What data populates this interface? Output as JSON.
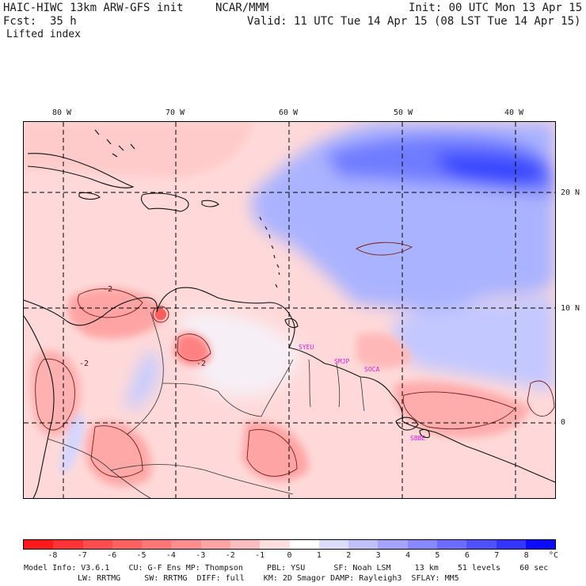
{
  "header": {
    "model_title": "HAIC-HIWC 13km ARW-GFS init",
    "institution": "NCAR/MMM",
    "init": "Init: 00 UTC Mon 13 Apr 15",
    "fcst": "Fcst:  35 h",
    "valid": "Valid: 11 UTC Tue 14 Apr 15 (08 LST Tue 14 Apr 15)",
    "field": "Lifted index"
  },
  "map": {
    "lon_labels": [
      "80 W",
      "70 W",
      "60 W",
      "50 W",
      "40 W"
    ],
    "lat_labels": [
      "20 N",
      "10 N",
      "0"
    ],
    "stations": [
      "SYEU",
      "SMJP",
      "SOCA",
      "SBBE"
    ],
    "contour_labels": [
      "-2",
      "-2",
      "-2"
    ]
  },
  "colorbar": {
    "labels": [
      "-8",
      "-7",
      "-6",
      "-5",
      "-4",
      "-3",
      "-2",
      "-1",
      "0",
      "1",
      "2",
      "3",
      "4",
      "5",
      "6",
      "7",
      "8"
    ],
    "unit": "°C",
    "colors": [
      "#ff0000",
      "#ff2020",
      "#ff4040",
      "#ff5a5a",
      "#ff7070",
      "#ff8888",
      "#ffa0a0",
      "#ffbaba",
      "#ffd6d6",
      "#ffffff",
      "#d6d6ff",
      "#baba ff",
      "#9e9eff",
      "#8282ff",
      "#6464ff",
      "#4646ff",
      "#2828ff",
      "#0a0aff"
    ]
  },
  "footer": {
    "line1": "Model Info: V3.6.1    CU: G-F Ens MP: Thompson     PBL: YSU      SF: Noah LSM     13 km    51 levels    60 sec",
    "line2": "LW: RRTMG     SW: RRTMG  DIFF: full    KM: 2D Smagor DAMP: Rayleigh3  SFLAY: MM5"
  }
}
